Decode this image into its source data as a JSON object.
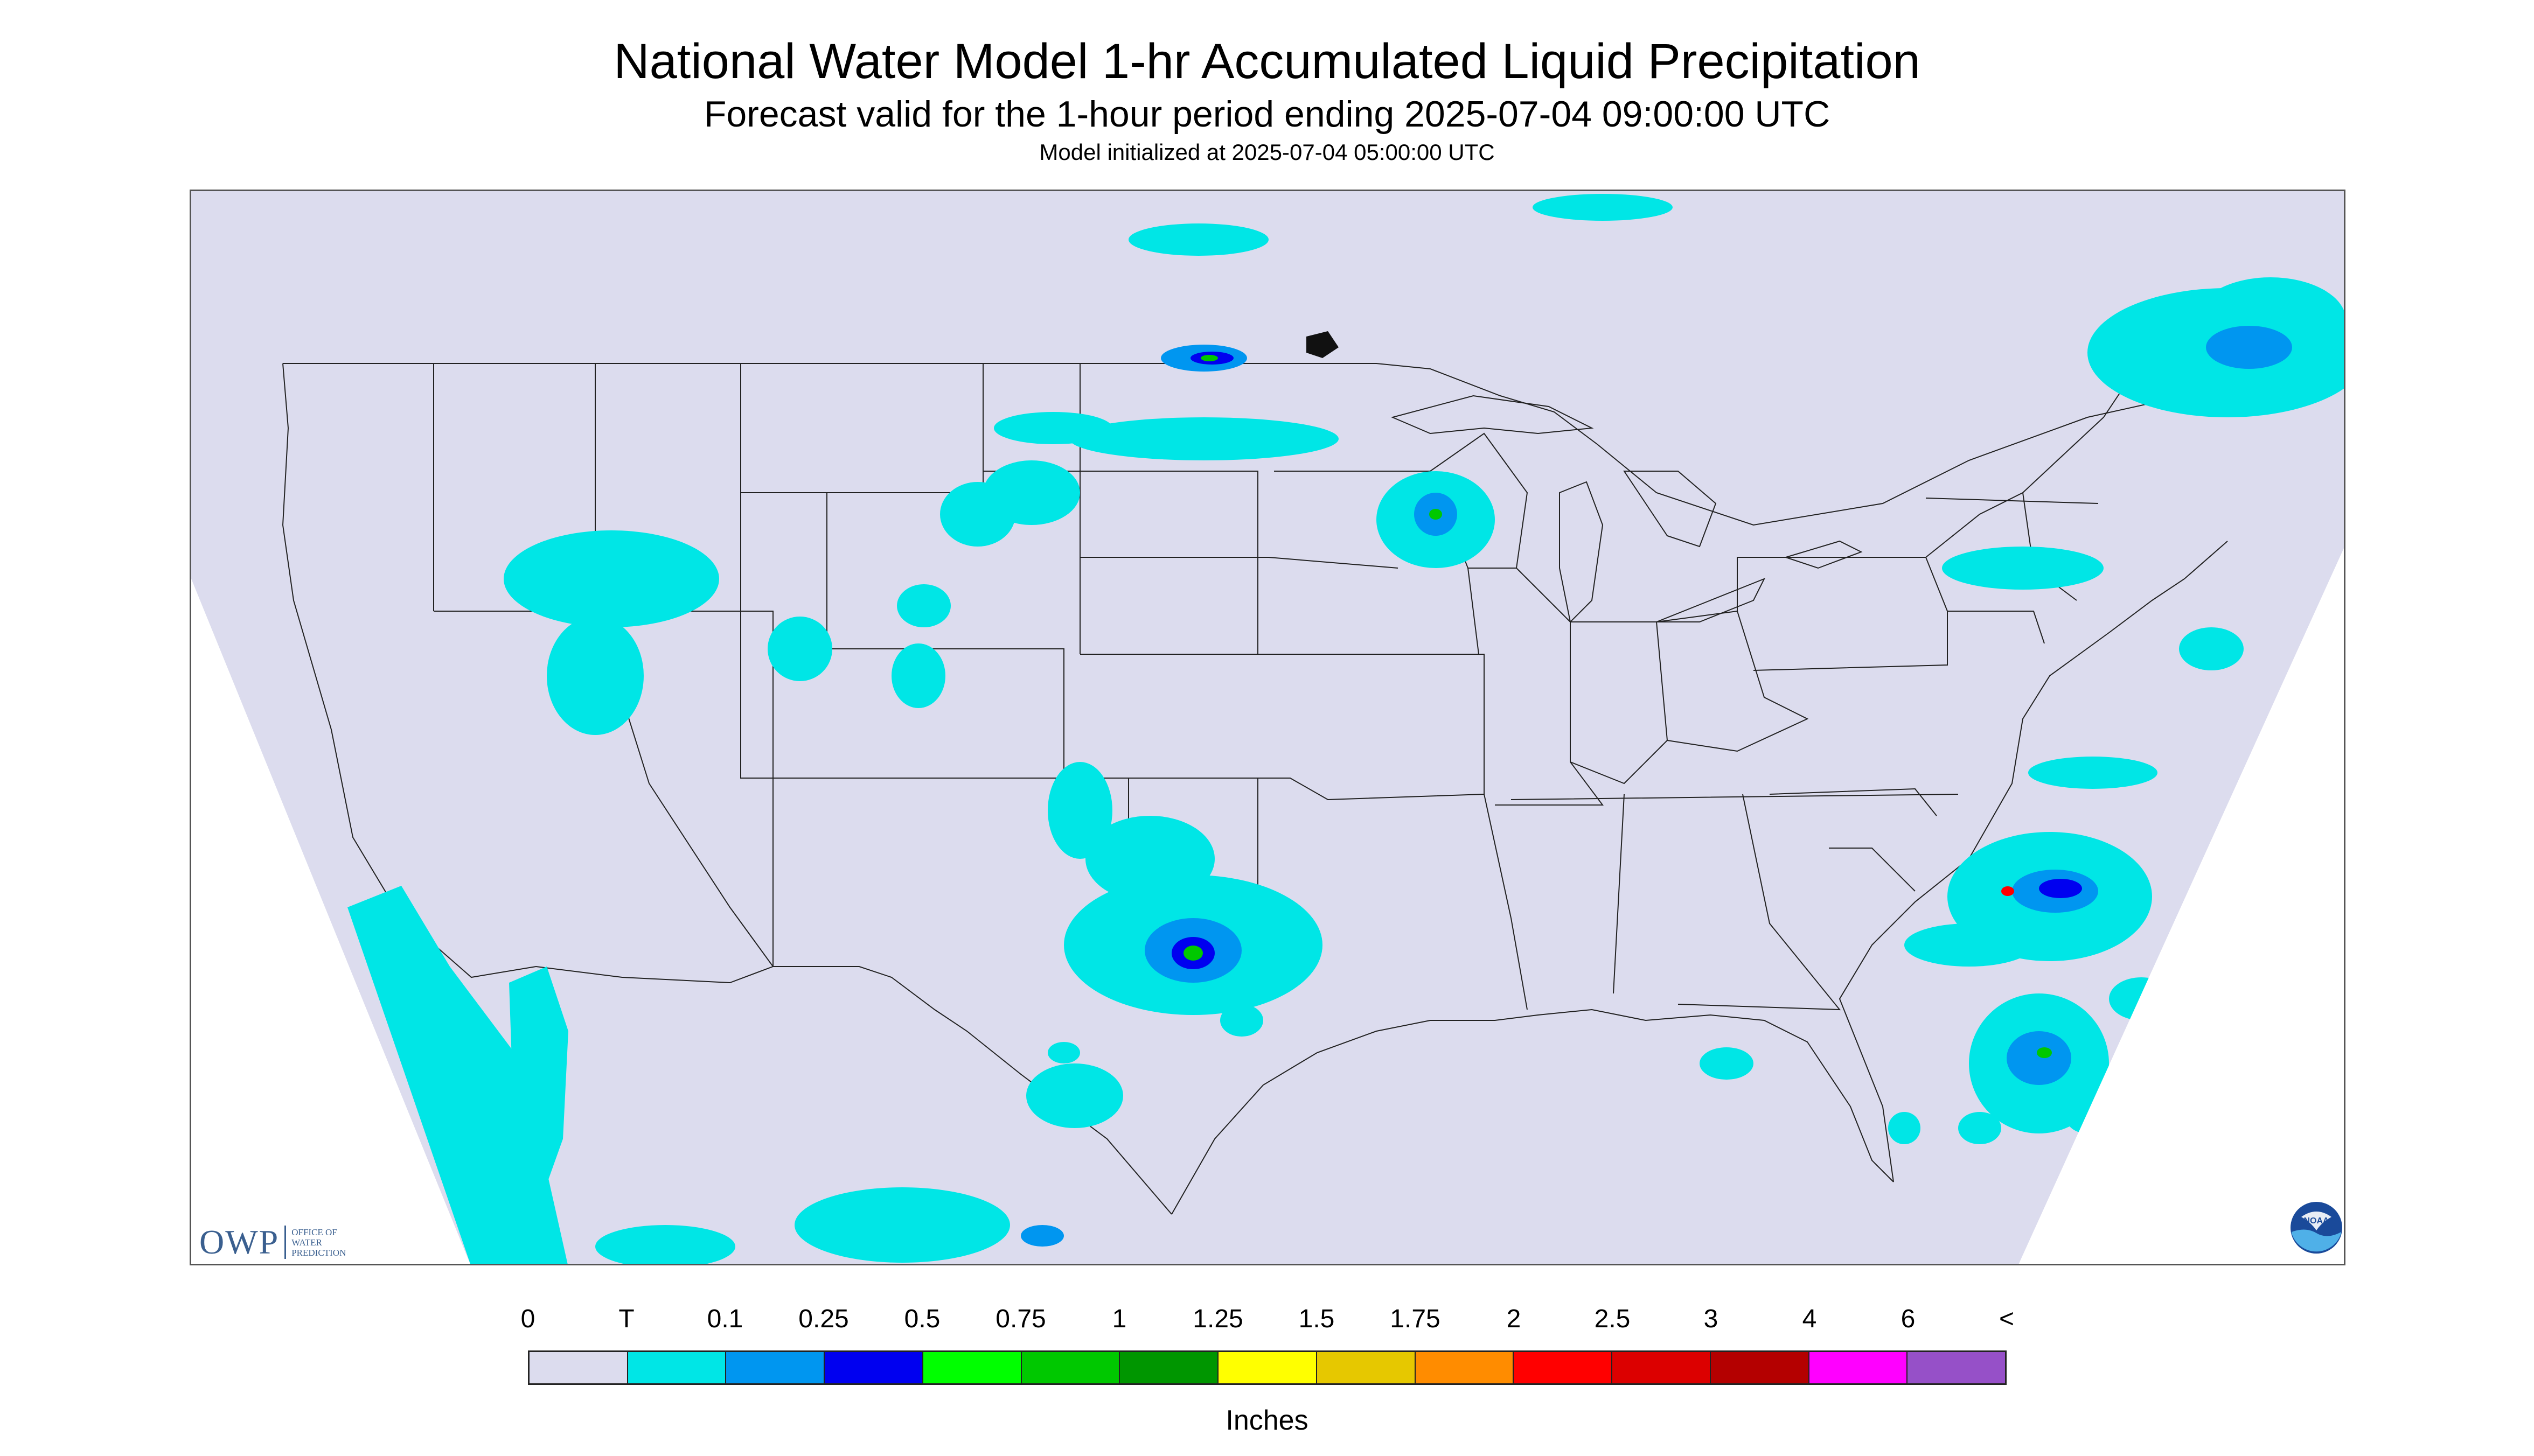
{
  "header": {
    "title": "National Water Model 1-hr Accumulated Liquid Precipitation",
    "subtitle": "Forecast valid for the 1-hour period ending 2025-07-04 09:00:00 UTC",
    "init": "Model initialized at 2025-07-04 05:00:00 UTC"
  },
  "logos": {
    "owp_mark": "OWP",
    "owp_line1": "OFFICE OF",
    "owp_line2": "WATER",
    "owp_line3": "PREDICTION",
    "noaa_text": "NOAA"
  },
  "legend": {
    "labels": [
      "0",
      "T",
      "0.1",
      "0.25",
      "0.5",
      "0.75",
      "1",
      "1.25",
      "1.5",
      "1.75",
      "2",
      "2.5",
      "3",
      "4",
      "6",
      "<"
    ],
    "colors": [
      "#dcdcee",
      "#00e6e6",
      "#0096f0",
      "#0000f0",
      "#00ff00",
      "#00c800",
      "#009600",
      "#ffff00",
      "#e6c800",
      "#ff8c00",
      "#ff0000",
      "#dc0000",
      "#b40000",
      "#ff00ff",
      "#9650c8"
    ],
    "units": "Inches"
  },
  "map": {
    "background_color": "#dcdcee",
    "boundary_color": "#222222"
  }
}
